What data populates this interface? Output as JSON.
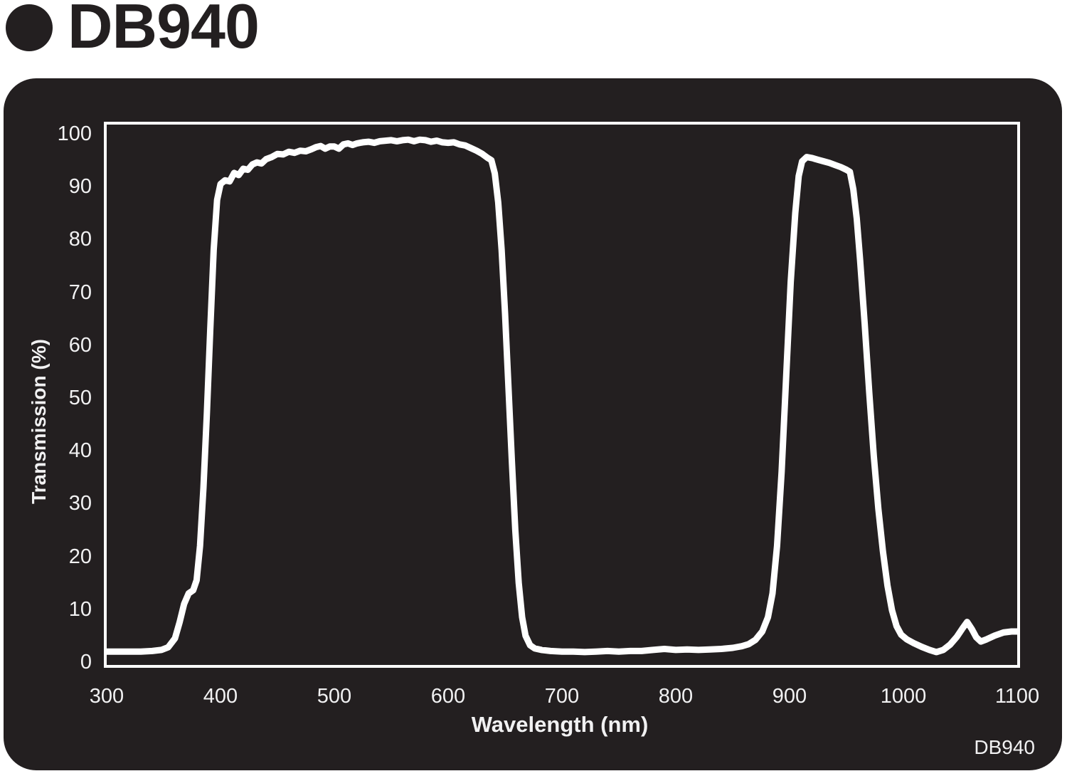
{
  "header": {
    "title": "DB940",
    "bullet_icon": "filled-circle"
  },
  "panel": {
    "watermark": "DB940"
  },
  "chart_data": {
    "type": "line",
    "title": "DB940",
    "xlabel": "Wavelength (nm)",
    "ylabel": "Transmission (%)",
    "xlim": [
      300,
      1100
    ],
    "ylim": [
      0,
      100
    ],
    "x_ticks": [
      300,
      400,
      500,
      600,
      700,
      800,
      900,
      1000,
      1100
    ],
    "y_ticks": [
      0,
      10,
      20,
      30,
      40,
      50,
      60,
      70,
      80,
      90,
      100
    ],
    "grid": false,
    "legend": "none",
    "line_color": "#ffffff",
    "plot_background": "#231f20",
    "series": [
      {
        "name": "DB940 transmission",
        "points": [
          [
            300,
            2.0
          ],
          [
            310,
            2.0
          ],
          [
            320,
            2.0
          ],
          [
            330,
            2.0
          ],
          [
            340,
            2.1
          ],
          [
            348,
            2.3
          ],
          [
            354,
            2.8
          ],
          [
            360,
            4.5
          ],
          [
            364,
            7.5
          ],
          [
            368,
            11.0
          ],
          [
            372,
            13.0
          ],
          [
            376,
            13.6
          ],
          [
            379,
            15.5
          ],
          [
            382,
            22.0
          ],
          [
            385,
            33.0
          ],
          [
            388,
            47.0
          ],
          [
            391,
            63.0
          ],
          [
            394,
            78.0
          ],
          [
            397,
            87.5
          ],
          [
            400,
            90.5
          ],
          [
            404,
            91.2
          ],
          [
            408,
            91.0
          ],
          [
            412,
            92.6
          ],
          [
            416,
            92.2
          ],
          [
            420,
            93.4
          ],
          [
            424,
            93.2
          ],
          [
            428,
            94.2
          ],
          [
            432,
            94.6
          ],
          [
            436,
            94.4
          ],
          [
            440,
            95.2
          ],
          [
            445,
            95.6
          ],
          [
            450,
            96.2
          ],
          [
            455,
            96.1
          ],
          [
            460,
            96.6
          ],
          [
            465,
            96.4
          ],
          [
            470,
            96.8
          ],
          [
            475,
            96.7
          ],
          [
            480,
            97.1
          ],
          [
            484,
            97.5
          ],
          [
            488,
            97.7
          ],
          [
            492,
            97.2
          ],
          [
            496,
            97.6
          ],
          [
            500,
            97.6
          ],
          [
            504,
            97.2
          ],
          [
            508,
            98.0
          ],
          [
            512,
            98.2
          ],
          [
            516,
            97.9
          ],
          [
            520,
            98.2
          ],
          [
            525,
            98.4
          ],
          [
            530,
            98.5
          ],
          [
            535,
            98.3
          ],
          [
            540,
            98.6
          ],
          [
            545,
            98.7
          ],
          [
            550,
            98.8
          ],
          [
            555,
            98.6
          ],
          [
            560,
            98.8
          ],
          [
            565,
            98.9
          ],
          [
            570,
            98.6
          ],
          [
            575,
            98.9
          ],
          [
            580,
            98.8
          ],
          [
            585,
            98.5
          ],
          [
            590,
            98.7
          ],
          [
            595,
            98.4
          ],
          [
            600,
            98.3
          ],
          [
            605,
            98.4
          ],
          [
            610,
            98.0
          ],
          [
            615,
            97.8
          ],
          [
            620,
            97.3
          ],
          [
            625,
            96.8
          ],
          [
            630,
            96.2
          ],
          [
            635,
            95.4
          ],
          [
            638,
            95.0
          ],
          [
            641,
            92.5
          ],
          [
            644,
            87.0
          ],
          [
            647,
            78.0
          ],
          [
            650,
            66.0
          ],
          [
            653,
            52.0
          ],
          [
            656,
            38.0
          ],
          [
            659,
            25.0
          ],
          [
            662,
            15.0
          ],
          [
            665,
            8.5
          ],
          [
            668,
            5.0
          ],
          [
            672,
            3.2
          ],
          [
            676,
            2.6
          ],
          [
            682,
            2.3
          ],
          [
            690,
            2.1
          ],
          [
            700,
            2.0
          ],
          [
            710,
            2.0
          ],
          [
            720,
            1.9
          ],
          [
            730,
            2.0
          ],
          [
            740,
            2.1
          ],
          [
            750,
            2.0
          ],
          [
            760,
            2.1
          ],
          [
            770,
            2.1
          ],
          [
            780,
            2.3
          ],
          [
            790,
            2.5
          ],
          [
            800,
            2.3
          ],
          [
            810,
            2.4
          ],
          [
            820,
            2.3
          ],
          [
            830,
            2.4
          ],
          [
            840,
            2.5
          ],
          [
            850,
            2.7
          ],
          [
            858,
            3.0
          ],
          [
            864,
            3.4
          ],
          [
            870,
            4.2
          ],
          [
            876,
            5.8
          ],
          [
            881,
            8.5
          ],
          [
            885,
            13.0
          ],
          [
            889,
            22.0
          ],
          [
            893,
            36.0
          ],
          [
            897,
            54.0
          ],
          [
            901,
            72.0
          ],
          [
            905,
            85.0
          ],
          [
            908,
            92.0
          ],
          [
            911,
            94.8
          ],
          [
            915,
            95.6
          ],
          [
            920,
            95.4
          ],
          [
            925,
            95.1
          ],
          [
            930,
            94.8
          ],
          [
            935,
            94.5
          ],
          [
            940,
            94.1
          ],
          [
            945,
            93.7
          ],
          [
            950,
            93.2
          ],
          [
            953,
            92.8
          ],
          [
            956,
            89.5
          ],
          [
            959,
            84.0
          ],
          [
            962,
            76.0
          ],
          [
            966,
            64.0
          ],
          [
            970,
            51.0
          ],
          [
            974,
            39.0
          ],
          [
            978,
            29.0
          ],
          [
            982,
            21.0
          ],
          [
            986,
            14.5
          ],
          [
            990,
            9.8
          ],
          [
            994,
            6.8
          ],
          [
            998,
            5.2
          ],
          [
            1003,
            4.3
          ],
          [
            1009,
            3.6
          ],
          [
            1016,
            2.9
          ],
          [
            1023,
            2.3
          ],
          [
            1029,
            1.9
          ],
          [
            1035,
            2.3
          ],
          [
            1041,
            3.3
          ],
          [
            1047,
            4.8
          ],
          [
            1052,
            6.4
          ],
          [
            1056,
            7.6
          ],
          [
            1060,
            6.3
          ],
          [
            1064,
            4.7
          ],
          [
            1068,
            3.9
          ],
          [
            1073,
            4.3
          ],
          [
            1080,
            5.0
          ],
          [
            1088,
            5.6
          ],
          [
            1095,
            5.8
          ],
          [
            1100,
            5.8
          ]
        ]
      }
    ]
  }
}
